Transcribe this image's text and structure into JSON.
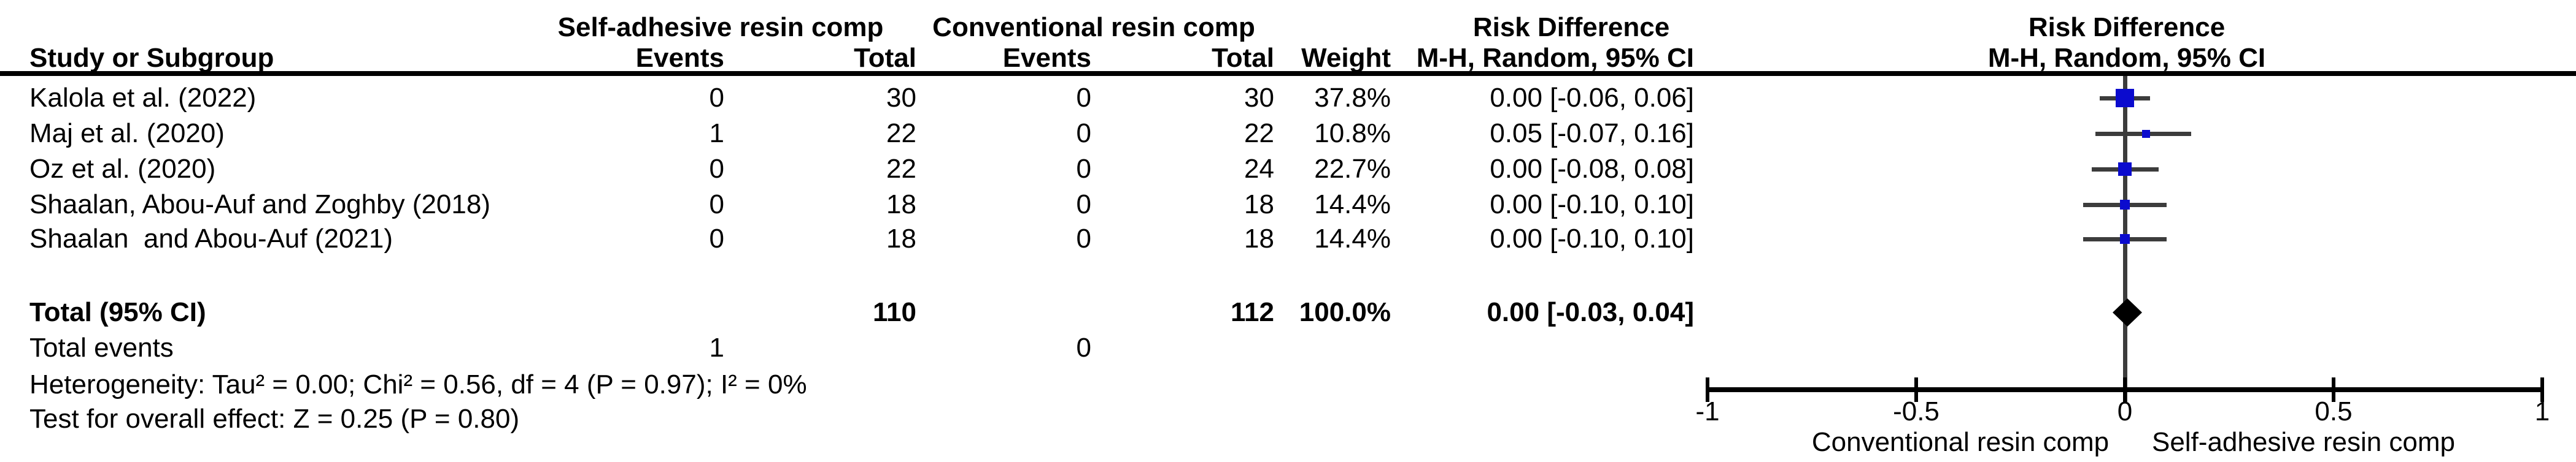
{
  "table": {
    "headers": {
      "group1": "Self-adhesive resin comp",
      "group2": "Conventional resin comp",
      "risk_difference": "Risk Difference",
      "study": "Study or Subgroup",
      "events": "Events",
      "total": "Total",
      "weight": "Weight",
      "method": "M-H, Random, 95% CI"
    },
    "rows": [
      {
        "study": "Kalola et al. (2022)",
        "events1": "0",
        "total1": "30",
        "events2": "0",
        "total2": "30",
        "weight": "37.8%",
        "ci": "0.00 [-0.06, 0.06]"
      },
      {
        "study": "Maj et al. (2020)",
        "events1": "1",
        "total1": "22",
        "events2": "0",
        "total2": "22",
        "weight": "10.8%",
        "ci": "0.05 [-0.07, 0.16]"
      },
      {
        "study": "Oz et al. (2020)",
        "events1": "0",
        "total1": "22",
        "events2": "0",
        "total2": "24",
        "weight": "22.7%",
        "ci": "0.00 [-0.08, 0.08]"
      },
      {
        "study": "Shaalan, Abou-Auf and Zoghby (2018)",
        "events1": "0",
        "total1": "18",
        "events2": "0",
        "total2": "18",
        "weight": "14.4%",
        "ci": "0.00 [-0.10, 0.10]"
      },
      {
        "study": "Shaalan  and Abou-Auf (2021)",
        "events1": "0",
        "total1": "18",
        "events2": "0",
        "total2": "18",
        "weight": "14.4%",
        "ci": "0.00 [-0.10, 0.10]"
      }
    ],
    "total_row": {
      "label": "Total (95% CI)",
      "total1": "110",
      "total2": "112",
      "weight": "100.0%",
      "ci": "0.00 [-0.03, 0.04]"
    },
    "total_events": {
      "label": "Total events",
      "events1": "1",
      "events2": "0"
    },
    "heterogeneity": "Heterogeneity: Tau² = 0.00; Chi² = 0.56, df = 4 (P = 0.97); I² = 0%",
    "overall_effect": "Test for overall effect: Z = 0.25 (P = 0.80)"
  },
  "chart_data": {
    "type": "forest",
    "effect_measure": "Risk Difference",
    "method": "M-H, Random, 95% CI",
    "x_axis": {
      "range": [
        -1,
        1
      ],
      "ticks": [
        -1,
        -0.5,
        0,
        0.5,
        1
      ],
      "tick_labels": [
        "-1",
        "-0.5",
        "0",
        "0.5",
        "1"
      ],
      "left_label": "Conventional resin comp",
      "right_label": "Self-adhesive resin comp"
    },
    "studies": [
      {
        "name": "Kalola et al. (2022)",
        "rd": 0.0,
        "ci_low": -0.06,
        "ci_high": 0.06,
        "weight_pct": 37.8
      },
      {
        "name": "Maj et al. (2020)",
        "rd": 0.05,
        "ci_low": -0.07,
        "ci_high": 0.16,
        "weight_pct": 10.8
      },
      {
        "name": "Oz et al. (2020)",
        "rd": 0.0,
        "ci_low": -0.08,
        "ci_high": 0.08,
        "weight_pct": 22.7
      },
      {
        "name": "Shaalan, Abou-Auf and Zoghby (2018)",
        "rd": 0.0,
        "ci_low": -0.1,
        "ci_high": 0.1,
        "weight_pct": 14.4
      },
      {
        "name": "Shaalan  and Abou-Auf (2021)",
        "rd": 0.0,
        "ci_low": -0.1,
        "ci_high": 0.1,
        "weight_pct": 14.4
      }
    ],
    "total": {
      "rd": 0.0,
      "ci_low": -0.03,
      "ci_high": 0.04,
      "weight_pct": 100.0
    }
  },
  "colors": {
    "marker_blue": "#0b0bce",
    "ci_line_gray": "#3c3c3c",
    "axis_black": "#000000",
    "diamond_black": "#000000"
  }
}
